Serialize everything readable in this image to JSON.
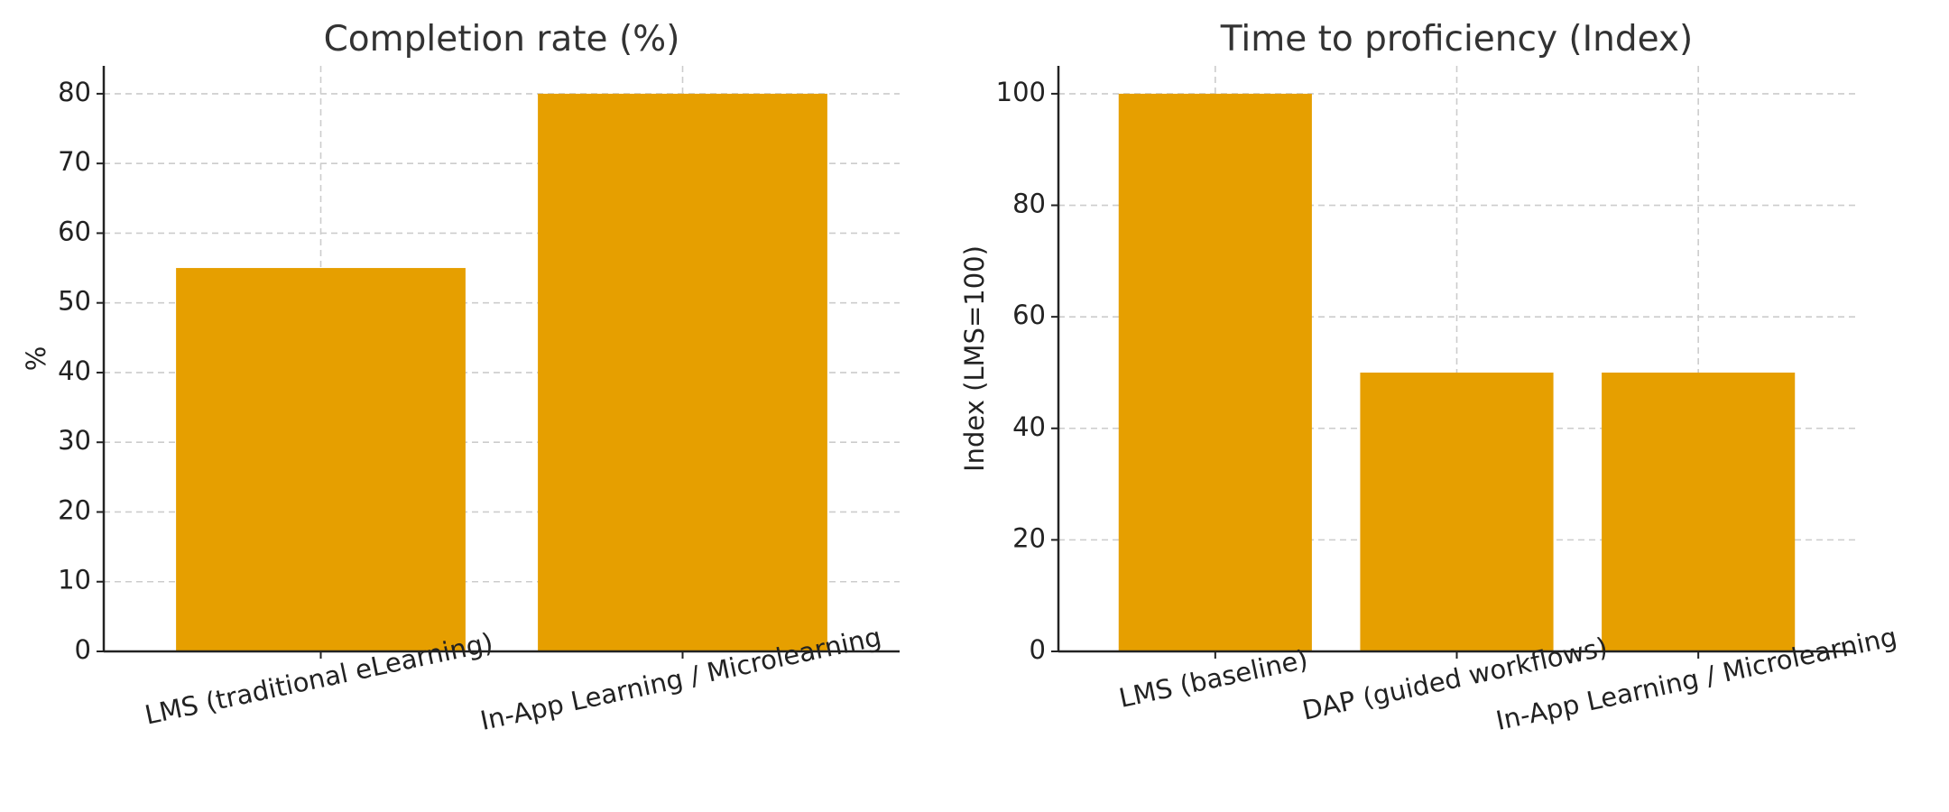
{
  "chart_data": [
    {
      "type": "bar",
      "title": "Completion rate (%)",
      "xlabel": "",
      "ylabel": "%",
      "categories": [
        "LMS (traditional eLearning)",
        "In-App Learning / Microlearning"
      ],
      "values": [
        55,
        80
      ],
      "ylim": [
        0,
        84
      ],
      "yticks": [
        0,
        10,
        20,
        30,
        40,
        50,
        60,
        70,
        80
      ],
      "grid": true,
      "bar_color": "#E69F00"
    },
    {
      "type": "bar",
      "title": "Time to proficiency (Index)",
      "xlabel": "",
      "ylabel": "Index (LMS=100)",
      "categories": [
        "LMS (baseline)",
        "DAP (guided workflows)",
        "In-App Learning / Microlearning"
      ],
      "values": [
        100,
        50,
        50
      ],
      "ylim": [
        0,
        105
      ],
      "yticks": [
        0,
        20,
        40,
        60,
        80,
        100
      ],
      "grid": true,
      "bar_color": "#E69F00"
    }
  ]
}
